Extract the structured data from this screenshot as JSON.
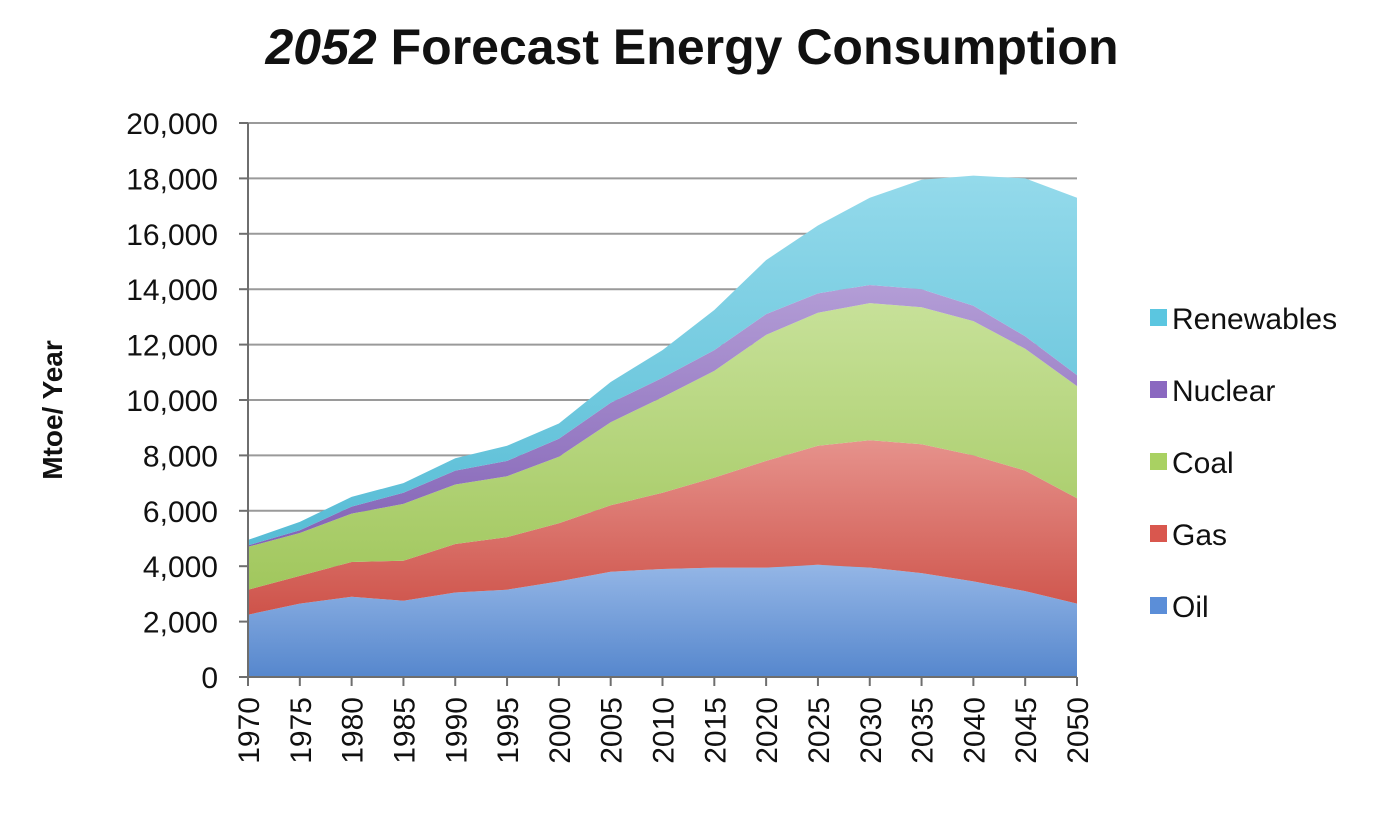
{
  "chart_data": {
    "type": "area",
    "stacked": true,
    "title_emphasis": "2052",
    "title_rest": " Forecast Energy Consumption",
    "xlabel": "",
    "ylabel": "Mtoe/ Year",
    "ylim": [
      0,
      20000
    ],
    "yticks": [
      "0",
      "2,000",
      "4,000",
      "6,000",
      "8,000",
      "10,000",
      "12,000",
      "14,000",
      "16,000",
      "18,000",
      "20,000"
    ],
    "yticks_values": [
      0,
      2000,
      4000,
      6000,
      8000,
      10000,
      12000,
      14000,
      16000,
      18000,
      20000
    ],
    "grid": true,
    "legend_position": "right",
    "x": [
      "1970",
      "1975",
      "1980",
      "1985",
      "1990",
      "1995",
      "2000",
      "2005",
      "2010",
      "2015",
      "2020",
      "2025",
      "2030",
      "2035",
      "2040",
      "2045",
      "2050"
    ],
    "series": [
      {
        "name": "Oil",
        "color": "#5b8ed8",
        "values": [
          2250,
          2650,
          2900,
          2750,
          3050,
          3150,
          3450,
          3800,
          3900,
          3950,
          3950,
          4050,
          3950,
          3750,
          3450,
          3100,
          2650
        ]
      },
      {
        "name": "Gas",
        "color": "#d9574e",
        "values": [
          900,
          1000,
          1250,
          1450,
          1750,
          1900,
          2100,
          2400,
          2750,
          3250,
          3850,
          4300,
          4600,
          4650,
          4550,
          4350,
          3800
        ]
      },
      {
        "name": "Coal",
        "color": "#a9d162",
        "values": [
          1550,
          1550,
          1750,
          2050,
          2150,
          2200,
          2400,
          3000,
          3450,
          3850,
          4550,
          4800,
          4950,
          4950,
          4850,
          4400,
          4050
        ]
      },
      {
        "name": "Nuclear",
        "color": "#8a68c0",
        "values": [
          50,
          100,
          250,
          400,
          500,
          550,
          650,
          700,
          700,
          750,
          750,
          700,
          650,
          650,
          550,
          450,
          400
        ]
      },
      {
        "name": "Renewables",
        "color": "#5bc6e0",
        "values": [
          200,
          300,
          350,
          350,
          450,
          550,
          550,
          750,
          1000,
          1450,
          1950,
          2450,
          3150,
          3950,
          4700,
          5700,
          6400
        ]
      }
    ]
  }
}
